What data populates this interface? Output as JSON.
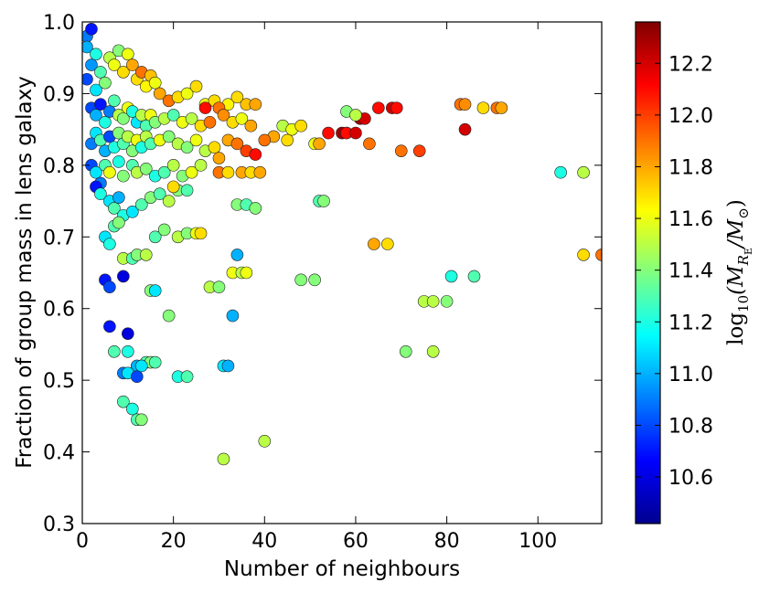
{
  "chart_data": {
    "type": "scatter",
    "title": "",
    "xlabel": "Number of neighbours",
    "ylabel": "Fraction of group mass in lens galaxy",
    "xlim": [
      0,
      114
    ],
    "ylim": [
      0.3,
      1.0
    ],
    "xticks": [
      0,
      20,
      40,
      60,
      80,
      100
    ],
    "xtick_labels": [
      "0",
      "20",
      "40",
      "60",
      "80",
      "100"
    ],
    "yticks": [
      0.3,
      0.4,
      0.5,
      0.6,
      0.7,
      0.8,
      0.9,
      1.0
    ],
    "ytick_labels": [
      "0.3",
      "0.4",
      "0.5",
      "0.6",
      "0.7",
      "0.8",
      "0.9",
      "1.0"
    ],
    "grid": false,
    "colorbar": {
      "label_log": "log",
      "label_sub10": "10",
      "label_main": "(M",
      "label_sub_R": "R",
      "label_sub_E": "E",
      "label_slash": "/M",
      "label_odot": "⊙",
      "label_close": ")",
      "range": [
        10.42,
        12.36
      ],
      "ticks": [
        10.6,
        10.8,
        11.0,
        11.2,
        11.4,
        11.6,
        11.8,
        12.0,
        12.2
      ],
      "tick_labels": [
        "10.6",
        "10.8",
        "11.0",
        "11.2",
        "11.4",
        "11.6",
        "11.8",
        "12.0",
        "12.2"
      ],
      "colormap": "jet"
    },
    "points": [
      {
        "x": 1,
        "y": 0.98,
        "c": 10.9
      },
      {
        "x": 2,
        "y": 0.99,
        "c": 10.7
      },
      {
        "x": 1,
        "y": 0.965,
        "c": 11.0
      },
      {
        "x": 3,
        "y": 0.955,
        "c": 11.2
      },
      {
        "x": 2,
        "y": 0.94,
        "c": 10.95
      },
      {
        "x": 4,
        "y": 0.93,
        "c": 11.3
      },
      {
        "x": 1,
        "y": 0.92,
        "c": 10.8
      },
      {
        "x": 3,
        "y": 0.905,
        "c": 11.1
      },
      {
        "x": 5,
        "y": 0.915,
        "c": 11.4
      },
      {
        "x": 6,
        "y": 0.95,
        "c": 11.5
      },
      {
        "x": 8,
        "y": 0.96,
        "c": 11.4
      },
      {
        "x": 7,
        "y": 0.94,
        "c": 11.6
      },
      {
        "x": 9,
        "y": 0.93,
        "c": 11.7
      },
      {
        "x": 10,
        "y": 0.955,
        "c": 11.6
      },
      {
        "x": 11,
        "y": 0.94,
        "c": 11.8
      },
      {
        "x": 12,
        "y": 0.92,
        "c": 11.7
      },
      {
        "x": 13,
        "y": 0.93,
        "c": 11.9
      },
      {
        "x": 14,
        "y": 0.91,
        "c": 11.65
      },
      {
        "x": 15,
        "y": 0.925,
        "c": 11.75
      },
      {
        "x": 16,
        "y": 0.915,
        "c": 11.6
      },
      {
        "x": 17,
        "y": 0.9,
        "c": 11.8
      },
      {
        "x": 19,
        "y": 0.89,
        "c": 11.9
      },
      {
        "x": 21,
        "y": 0.895,
        "c": 11.7
      },
      {
        "x": 23,
        "y": 0.9,
        "c": 11.6
      },
      {
        "x": 25,
        "y": 0.91,
        "c": 11.7
      },
      {
        "x": 27,
        "y": 0.885,
        "c": 11.6
      },
      {
        "x": 29,
        "y": 0.89,
        "c": 11.7
      },
      {
        "x": 32,
        "y": 0.885,
        "c": 11.65
      },
      {
        "x": 34,
        "y": 0.895,
        "c": 11.7
      },
      {
        "x": 36,
        "y": 0.885,
        "c": 11.75
      },
      {
        "x": 38,
        "y": 0.885,
        "c": 11.8
      },
      {
        "x": 30,
        "y": 0.88,
        "c": 11.9
      },
      {
        "x": 2,
        "y": 0.88,
        "c": 10.8
      },
      {
        "x": 3,
        "y": 0.87,
        "c": 11.0
      },
      {
        "x": 4,
        "y": 0.885,
        "c": 10.7
      },
      {
        "x": 5,
        "y": 0.86,
        "c": 11.2
      },
      {
        "x": 6,
        "y": 0.875,
        "c": 10.9
      },
      {
        "x": 7,
        "y": 0.89,
        "c": 11.3
      },
      {
        "x": 8,
        "y": 0.87,
        "c": 11.5
      },
      {
        "x": 9,
        "y": 0.865,
        "c": 11.4
      },
      {
        "x": 10,
        "y": 0.88,
        "c": 11.6
      },
      {
        "x": 11,
        "y": 0.875,
        "c": 11.2
      },
      {
        "x": 12,
        "y": 0.86,
        "c": 11.1
      },
      {
        "x": 13,
        "y": 0.87,
        "c": 11.5
      },
      {
        "x": 14,
        "y": 0.855,
        "c": 11.3
      },
      {
        "x": 15,
        "y": 0.87,
        "c": 11.6
      },
      {
        "x": 16,
        "y": 0.86,
        "c": 11.4
      },
      {
        "x": 18,
        "y": 0.865,
        "c": 11.5
      },
      {
        "x": 20,
        "y": 0.87,
        "c": 11.3
      },
      {
        "x": 22,
        "y": 0.86,
        "c": 11.6
      },
      {
        "x": 24,
        "y": 0.865,
        "c": 11.5
      },
      {
        "x": 26,
        "y": 0.855,
        "c": 11.7
      },
      {
        "x": 28,
        "y": 0.86,
        "c": 11.9
      },
      {
        "x": 31,
        "y": 0.87,
        "c": 11.85
      },
      {
        "x": 33,
        "y": 0.86,
        "c": 11.7
      },
      {
        "x": 35,
        "y": 0.865,
        "c": 11.6
      },
      {
        "x": 37,
        "y": 0.855,
        "c": 11.8
      },
      {
        "x": 27,
        "y": 0.88,
        "c": 12.1
      },
      {
        "x": 2,
        "y": 0.83,
        "c": 10.9
      },
      {
        "x": 3,
        "y": 0.845,
        "c": 11.1
      },
      {
        "x": 4,
        "y": 0.835,
        "c": 11.3
      },
      {
        "x": 5,
        "y": 0.82,
        "c": 11.0
      },
      {
        "x": 6,
        "y": 0.84,
        "c": 10.8
      },
      {
        "x": 7,
        "y": 0.825,
        "c": 11.2
      },
      {
        "x": 8,
        "y": 0.845,
        "c": 11.4
      },
      {
        "x": 9,
        "y": 0.83,
        "c": 11.3
      },
      {
        "x": 10,
        "y": 0.84,
        "c": 11.5
      },
      {
        "x": 11,
        "y": 0.82,
        "c": 11.4
      },
      {
        "x": 12,
        "y": 0.835,
        "c": 11.6
      },
      {
        "x": 13,
        "y": 0.825,
        "c": 11.2
      },
      {
        "x": 14,
        "y": 0.84,
        "c": 11.5
      },
      {
        "x": 15,
        "y": 0.83,
        "c": 11.3
      },
      {
        "x": 17,
        "y": 0.835,
        "c": 11.6
      },
      {
        "x": 19,
        "y": 0.84,
        "c": 11.4
      },
      {
        "x": 21,
        "y": 0.83,
        "c": 11.5
      },
      {
        "x": 23,
        "y": 0.825,
        "c": 11.4
      },
      {
        "x": 25,
        "y": 0.835,
        "c": 11.6
      },
      {
        "x": 27,
        "y": 0.82,
        "c": 11.5
      },
      {
        "x": 29,
        "y": 0.825,
        "c": 11.7
      },
      {
        "x": 32,
        "y": 0.835,
        "c": 11.8
      },
      {
        "x": 34,
        "y": 0.83,
        "c": 11.9
      },
      {
        "x": 36,
        "y": 0.82,
        "c": 12.0
      },
      {
        "x": 38,
        "y": 0.815,
        "c": 12.1
      },
      {
        "x": 30,
        "y": 0.81,
        "c": 11.8
      },
      {
        "x": 2,
        "y": 0.8,
        "c": 10.8
      },
      {
        "x": 3,
        "y": 0.79,
        "c": 11.1
      },
      {
        "x": 4,
        "y": 0.775,
        "c": 10.9
      },
      {
        "x": 5,
        "y": 0.8,
        "c": 11.3
      },
      {
        "x": 6,
        "y": 0.79,
        "c": 11.6
      },
      {
        "x": 8,
        "y": 0.805,
        "c": 11.2
      },
      {
        "x": 9,
        "y": 0.785,
        "c": 11.4
      },
      {
        "x": 11,
        "y": 0.8,
        "c": 11.3
      },
      {
        "x": 12,
        "y": 0.79,
        "c": 11.5
      },
      {
        "x": 14,
        "y": 0.795,
        "c": 11.4
      },
      {
        "x": 16,
        "y": 0.785,
        "c": 11.2
      },
      {
        "x": 18,
        "y": 0.79,
        "c": 11.3
      },
      {
        "x": 20,
        "y": 0.8,
        "c": 11.5
      },
      {
        "x": 22,
        "y": 0.785,
        "c": 11.4
      },
      {
        "x": 24,
        "y": 0.79,
        "c": 11.6
      },
      {
        "x": 26,
        "y": 0.8,
        "c": 11.5
      },
      {
        "x": 30,
        "y": 0.79,
        "c": 11.9
      },
      {
        "x": 32,
        "y": 0.79,
        "c": 11.7
      },
      {
        "x": 35,
        "y": 0.79,
        "c": 11.8
      },
      {
        "x": 37,
        "y": 0.79,
        "c": 11.7
      },
      {
        "x": 39,
        "y": 0.79,
        "c": 11.8
      },
      {
        "x": 3,
        "y": 0.77,
        "c": 10.7
      },
      {
        "x": 4,
        "y": 0.76,
        "c": 11.2
      },
      {
        "x": 6,
        "y": 0.75,
        "c": 11.1
      },
      {
        "x": 7,
        "y": 0.74,
        "c": 11.3
      },
      {
        "x": 8,
        "y": 0.755,
        "c": 11.0
      },
      {
        "x": 9,
        "y": 0.73,
        "c": 11.2
      },
      {
        "x": 11,
        "y": 0.735,
        "c": 11.1
      },
      {
        "x": 13,
        "y": 0.745,
        "c": 11.3
      },
      {
        "x": 15,
        "y": 0.755,
        "c": 11.4
      },
      {
        "x": 17,
        "y": 0.76,
        "c": 11.3
      },
      {
        "x": 19,
        "y": 0.75,
        "c": 11.5
      },
      {
        "x": 21,
        "y": 0.765,
        "c": 11.4
      },
      {
        "x": 23,
        "y": 0.765,
        "c": 11.3
      },
      {
        "x": 20,
        "y": 0.77,
        "c": 11.7
      },
      {
        "x": 34,
        "y": 0.745,
        "c": 11.4
      },
      {
        "x": 36,
        "y": 0.745,
        "c": 11.3
      },
      {
        "x": 38,
        "y": 0.74,
        "c": 11.4
      },
      {
        "x": 52,
        "y": 0.75,
        "c": 11.3
      },
      {
        "x": 53,
        "y": 0.75,
        "c": 11.4
      },
      {
        "x": 5,
        "y": 0.7,
        "c": 11.1
      },
      {
        "x": 7,
        "y": 0.715,
        "c": 11.3
      },
      {
        "x": 8,
        "y": 0.72,
        "c": 11.4
      },
      {
        "x": 9,
        "y": 0.67,
        "c": 11.5
      },
      {
        "x": 11,
        "y": 0.67,
        "c": 11.3
      },
      {
        "x": 12,
        "y": 0.675,
        "c": 11.4
      },
      {
        "x": 14,
        "y": 0.675,
        "c": 11.5
      },
      {
        "x": 16,
        "y": 0.7,
        "c": 11.3
      },
      {
        "x": 18,
        "y": 0.71,
        "c": 11.4
      },
      {
        "x": 21,
        "y": 0.7,
        "c": 11.5
      },
      {
        "x": 23,
        "y": 0.705,
        "c": 11.4
      },
      {
        "x": 25,
        "y": 0.705,
        "c": 11.6
      },
      {
        "x": 26,
        "y": 0.705,
        "c": 11.7
      },
      {
        "x": 6,
        "y": 0.69,
        "c": 11.2
      },
      {
        "x": 64,
        "y": 0.69,
        "c": 11.8
      },
      {
        "x": 67,
        "y": 0.69,
        "c": 11.7
      },
      {
        "x": 5,
        "y": 0.64,
        "c": 10.7
      },
      {
        "x": 6,
        "y": 0.63,
        "c": 10.8
      },
      {
        "x": 9,
        "y": 0.645,
        "c": 10.6
      },
      {
        "x": 15,
        "y": 0.625,
        "c": 11.4
      },
      {
        "x": 16,
        "y": 0.625,
        "c": 11.1
      },
      {
        "x": 28,
        "y": 0.63,
        "c": 11.5
      },
      {
        "x": 30,
        "y": 0.63,
        "c": 11.4
      },
      {
        "x": 33,
        "y": 0.65,
        "c": 11.6
      },
      {
        "x": 35,
        "y": 0.65,
        "c": 11.5
      },
      {
        "x": 36,
        "y": 0.65,
        "c": 11.6
      },
      {
        "x": 34,
        "y": 0.675,
        "c": 11.0
      },
      {
        "x": 48,
        "y": 0.64,
        "c": 11.4
      },
      {
        "x": 51,
        "y": 0.64,
        "c": 11.4
      },
      {
        "x": 81,
        "y": 0.645,
        "c": 11.2
      },
      {
        "x": 86,
        "y": 0.645,
        "c": 11.3
      },
      {
        "x": 110,
        "y": 0.675,
        "c": 11.7
      },
      {
        "x": 114,
        "y": 0.675,
        "c": 11.9
      },
      {
        "x": 6,
        "y": 0.575,
        "c": 10.7
      },
      {
        "x": 10,
        "y": 0.565,
        "c": 10.6
      },
      {
        "x": 7,
        "y": 0.54,
        "c": 11.3
      },
      {
        "x": 10,
        "y": 0.54,
        "c": 11.2
      },
      {
        "x": 19,
        "y": 0.59,
        "c": 11.4
      },
      {
        "x": 33,
        "y": 0.59,
        "c": 11.0
      },
      {
        "x": 14,
        "y": 0.525,
        "c": 11.3
      },
      {
        "x": 15,
        "y": 0.525,
        "c": 11.4
      },
      {
        "x": 16,
        "y": 0.525,
        "c": 11.3
      },
      {
        "x": 12,
        "y": 0.52,
        "c": 11.0
      },
      {
        "x": 13,
        "y": 0.52,
        "c": 11.1
      },
      {
        "x": 9,
        "y": 0.51,
        "c": 10.9
      },
      {
        "x": 10,
        "y": 0.51,
        "c": 11.1
      },
      {
        "x": 12,
        "y": 0.505,
        "c": 10.8
      },
      {
        "x": 21,
        "y": 0.505,
        "c": 11.2
      },
      {
        "x": 23,
        "y": 0.505,
        "c": 11.3
      },
      {
        "x": 31,
        "y": 0.52,
        "c": 11.1
      },
      {
        "x": 32,
        "y": 0.52,
        "c": 11.0
      },
      {
        "x": 75,
        "y": 0.61,
        "c": 11.5
      },
      {
        "x": 77,
        "y": 0.61,
        "c": 11.5
      },
      {
        "x": 80,
        "y": 0.61,
        "c": 11.4
      },
      {
        "x": 71,
        "y": 0.54,
        "c": 11.4
      },
      {
        "x": 77,
        "y": 0.54,
        "c": 11.5
      },
      {
        "x": 9,
        "y": 0.47,
        "c": 11.3
      },
      {
        "x": 11,
        "y": 0.46,
        "c": 11.2
      },
      {
        "x": 12,
        "y": 0.445,
        "c": 11.3
      },
      {
        "x": 13,
        "y": 0.445,
        "c": 11.4
      },
      {
        "x": 40,
        "y": 0.415,
        "c": 11.5
      },
      {
        "x": 31,
        "y": 0.39,
        "c": 11.5
      },
      {
        "x": 44,
        "y": 0.855,
        "c": 11.5
      },
      {
        "x": 46,
        "y": 0.85,
        "c": 11.6
      },
      {
        "x": 48,
        "y": 0.855,
        "c": 11.7
      },
      {
        "x": 42,
        "y": 0.84,
        "c": 11.8
      },
      {
        "x": 40,
        "y": 0.835,
        "c": 11.9
      },
      {
        "x": 45,
        "y": 0.835,
        "c": 11.7
      },
      {
        "x": 51,
        "y": 0.83,
        "c": 11.6
      },
      {
        "x": 52,
        "y": 0.83,
        "c": 11.8
      },
      {
        "x": 54,
        "y": 0.845,
        "c": 12.1
      },
      {
        "x": 57,
        "y": 0.845,
        "c": 12.3
      },
      {
        "x": 58,
        "y": 0.845,
        "c": 12.1
      },
      {
        "x": 60,
        "y": 0.845,
        "c": 12.2
      },
      {
        "x": 61,
        "y": 0.865,
        "c": 12.3
      },
      {
        "x": 62,
        "y": 0.865,
        "c": 12.2
      },
      {
        "x": 58,
        "y": 0.875,
        "c": 11.4
      },
      {
        "x": 60,
        "y": 0.87,
        "c": 11.5
      },
      {
        "x": 65,
        "y": 0.88,
        "c": 12.1
      },
      {
        "x": 68,
        "y": 0.88,
        "c": 12.2
      },
      {
        "x": 69,
        "y": 0.88,
        "c": 12.1
      },
      {
        "x": 63,
        "y": 0.83,
        "c": 11.9
      },
      {
        "x": 70,
        "y": 0.82,
        "c": 11.9
      },
      {
        "x": 74,
        "y": 0.82,
        "c": 12.0
      },
      {
        "x": 83,
        "y": 0.885,
        "c": 11.9
      },
      {
        "x": 84,
        "y": 0.885,
        "c": 11.85
      },
      {
        "x": 88,
        "y": 0.88,
        "c": 11.7
      },
      {
        "x": 91,
        "y": 0.88,
        "c": 11.9
      },
      {
        "x": 92,
        "y": 0.88,
        "c": 11.8
      },
      {
        "x": 84,
        "y": 0.85,
        "c": 12.2
      },
      {
        "x": 105,
        "y": 0.79,
        "c": 11.2
      },
      {
        "x": 110,
        "y": 0.79,
        "c": 11.5
      }
    ]
  }
}
